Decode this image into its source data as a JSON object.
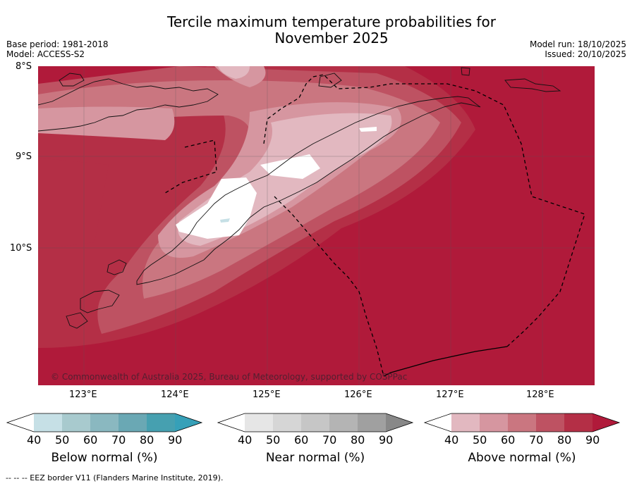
{
  "header": {
    "title_line1": "Tercile maximum temperature probabilities for",
    "title_line2": "November 2025",
    "base_period": "Base period: 1981-2018",
    "model": "Model: ACCESS-S2",
    "model_run": "Model run: 18/10/2025",
    "issued": "Issued: 20/10/2025"
  },
  "map": {
    "lat_labels": [
      "8°S",
      "9°S",
      "10°S"
    ],
    "lon_labels": [
      "123°E",
      "124°E",
      "125°E",
      "126°E",
      "127°E",
      "128°E"
    ],
    "copyright": "© Commonwealth of Australia 2025, Bureau of Meteorology, supported by COSPPac"
  },
  "legends": [
    {
      "label": "Below normal (%)",
      "ticks": [
        "40",
        "50",
        "60",
        "70",
        "80",
        "90"
      ],
      "colors": [
        "#ffffff",
        "#c6e0e6",
        "#a8cace",
        "#8ab8c0",
        "#6aa8b4",
        "#46a0b0",
        "#36a0b8"
      ]
    },
    {
      "label": "Near normal (%)",
      "ticks": [
        "40",
        "50",
        "60",
        "70",
        "80",
        "90"
      ],
      "colors": [
        "#ffffff",
        "#e6e6e6",
        "#d6d6d6",
        "#c6c6c6",
        "#b4b4b4",
        "#a0a0a0",
        "#888888"
      ]
    },
    {
      "label": "Above normal (%)",
      "ticks": [
        "40",
        "50",
        "60",
        "70",
        "80",
        "90"
      ],
      "colors": [
        "#ffffff",
        "#e2b8c0",
        "#d696a0",
        "#ca7680",
        "#be5262",
        "#b42f46",
        "#b01a3a"
      ]
    }
  ],
  "footnote": "-- -- -- EEZ border V11 (Flanders Marine Institute, 2019)."
}
